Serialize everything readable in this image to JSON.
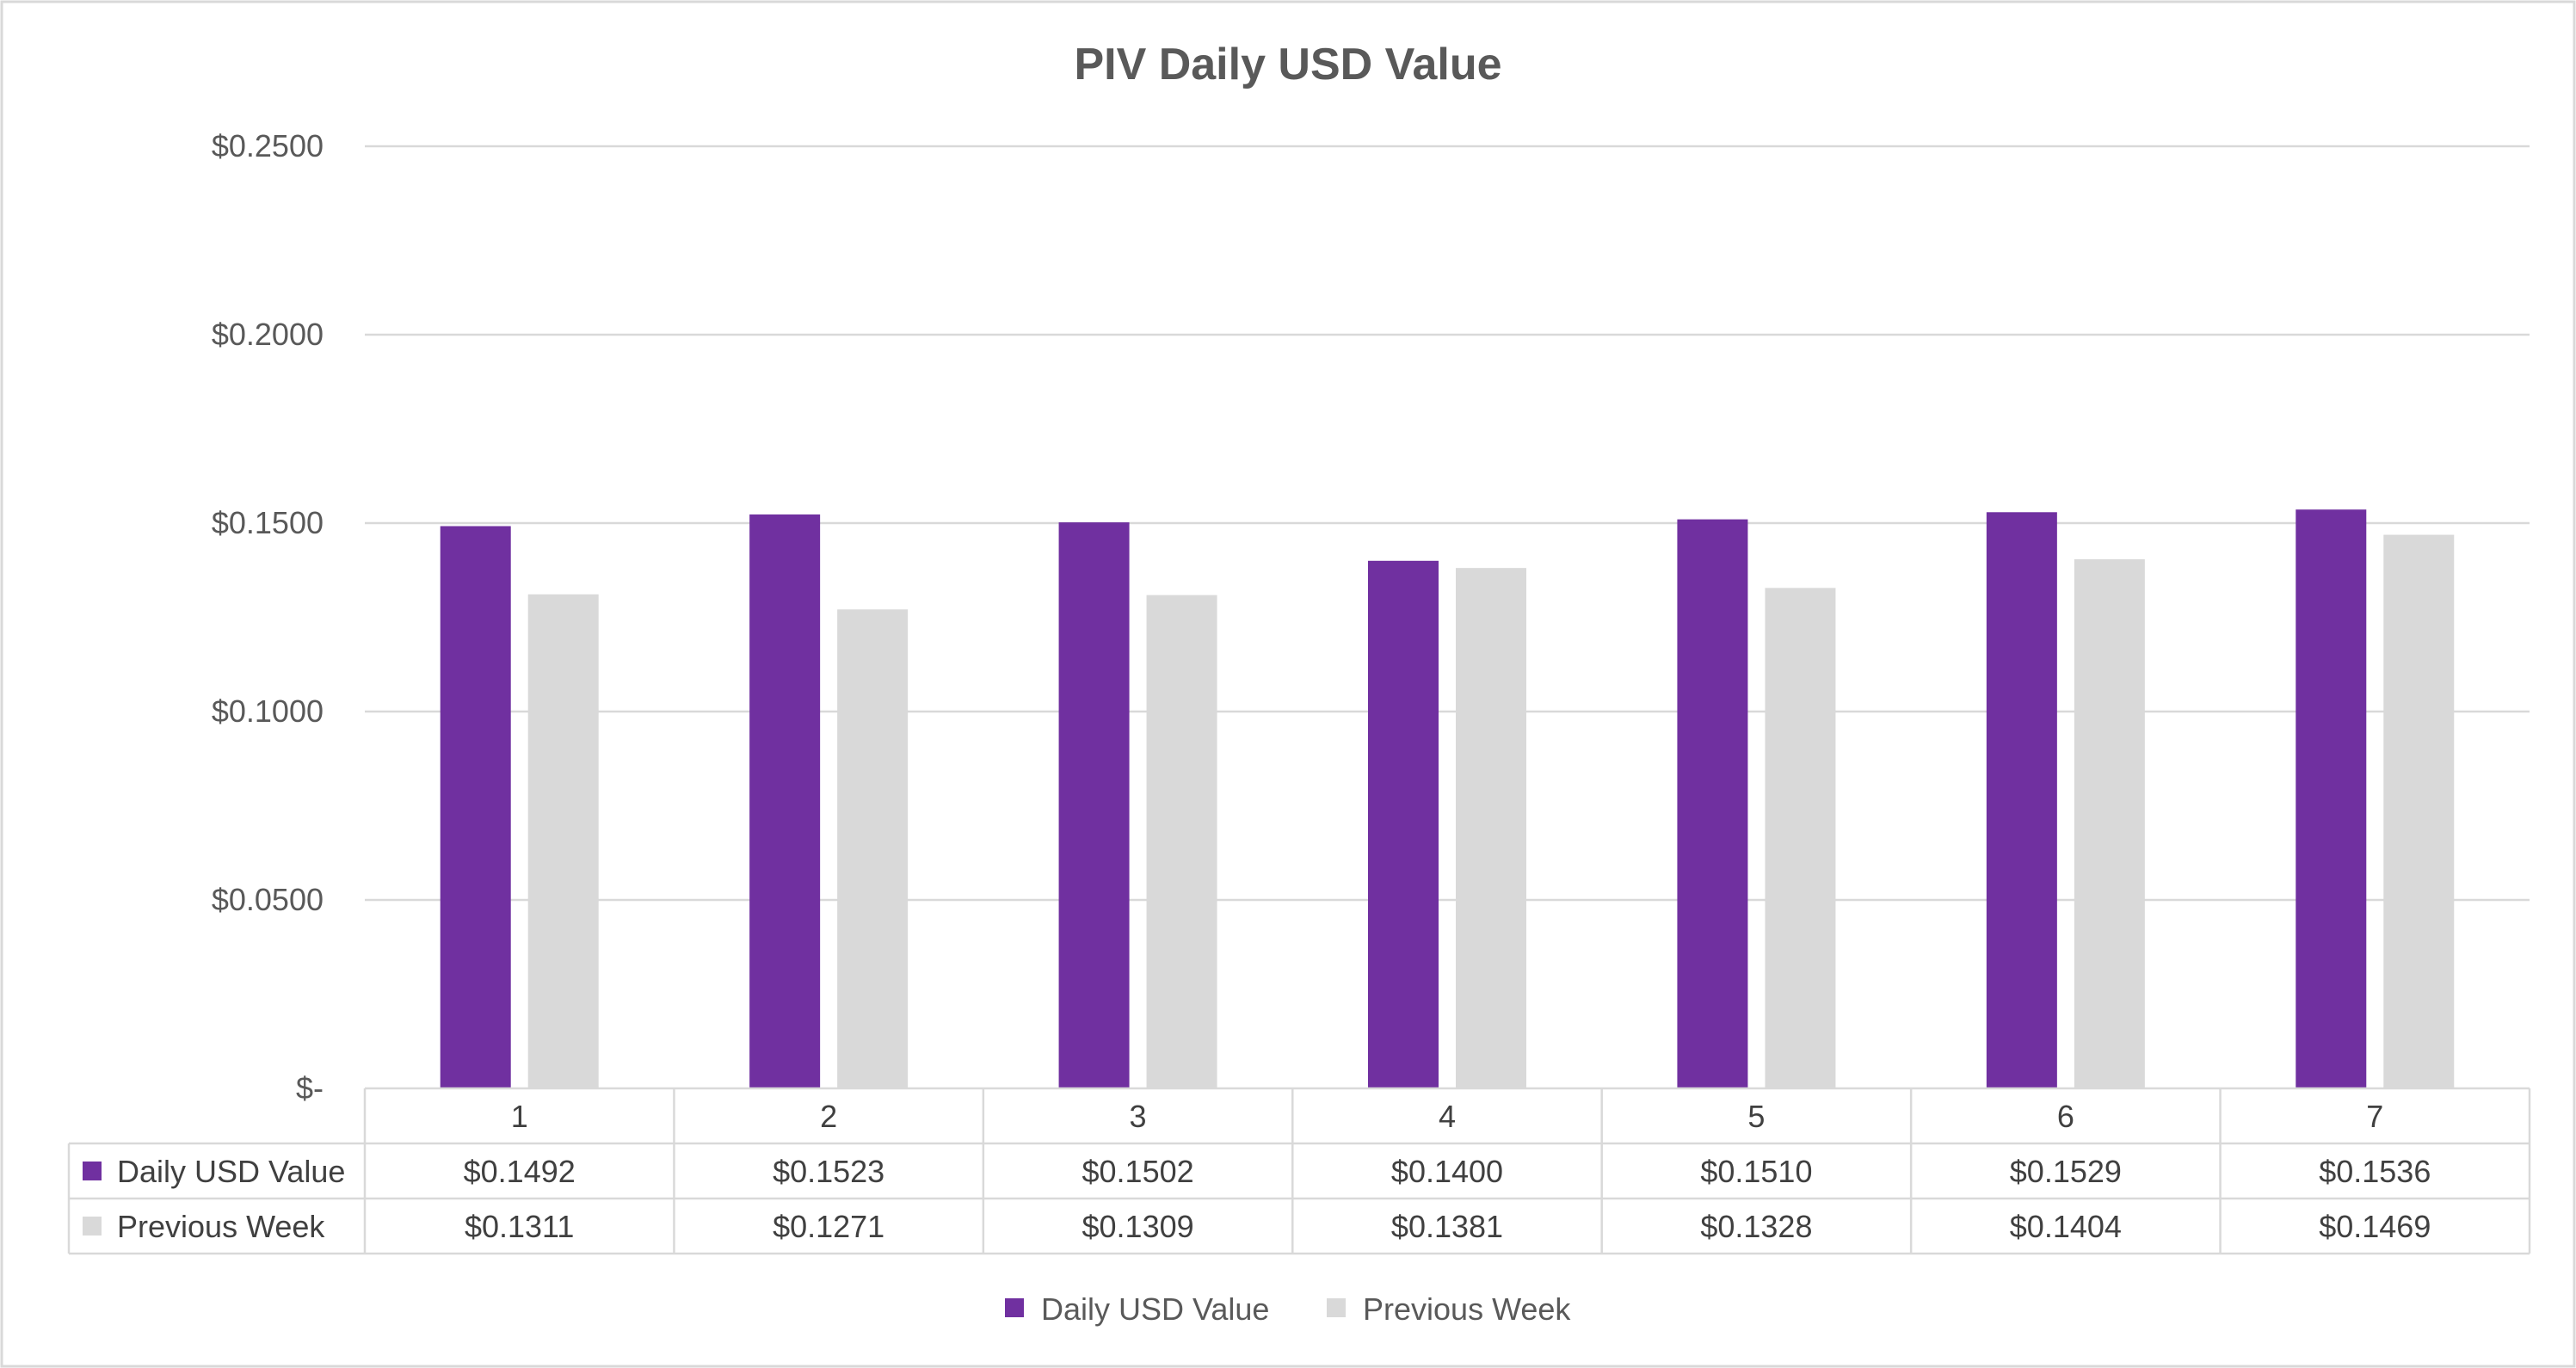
{
  "chart_data": {
    "type": "bar",
    "title": "PIV Daily USD Value",
    "categories": [
      "1",
      "2",
      "3",
      "4",
      "5",
      "6",
      "7"
    ],
    "series": [
      {
        "name": "Daily USD Value",
        "color": "#7030A0",
        "values": [
          0.1492,
          0.1523,
          0.1502,
          0.14,
          0.151,
          0.1529,
          0.1536
        ]
      },
      {
        "name": "Previous Week",
        "color": "#D9D9D9",
        "values": [
          0.1311,
          0.1271,
          0.1309,
          0.1381,
          0.1328,
          0.1404,
          0.1469
        ]
      }
    ],
    "data_table": {
      "rows": [
        [
          "$0.1492",
          "$0.1523",
          "$0.1502",
          "$0.1400",
          "$0.1510",
          "$0.1529",
          "$0.1536"
        ],
        [
          "$0.1311",
          "$0.1271",
          "$0.1309",
          "$0.1381",
          "$0.1328",
          "$0.1404",
          "$0.1469"
        ]
      ]
    },
    "y_ticks": [
      {
        "value": 0,
        "label": "$-"
      },
      {
        "value": 0.05,
        "label": "$0.0500"
      },
      {
        "value": 0.1,
        "label": "$0.1000"
      },
      {
        "value": 0.15,
        "label": "$0.1500"
      },
      {
        "value": 0.2,
        "label": "$0.2000"
      },
      {
        "value": 0.25,
        "label": "$0.2500"
      }
    ],
    "ylim": [
      0,
      0.25
    ],
    "grid": true,
    "legend_position": "bottom"
  }
}
